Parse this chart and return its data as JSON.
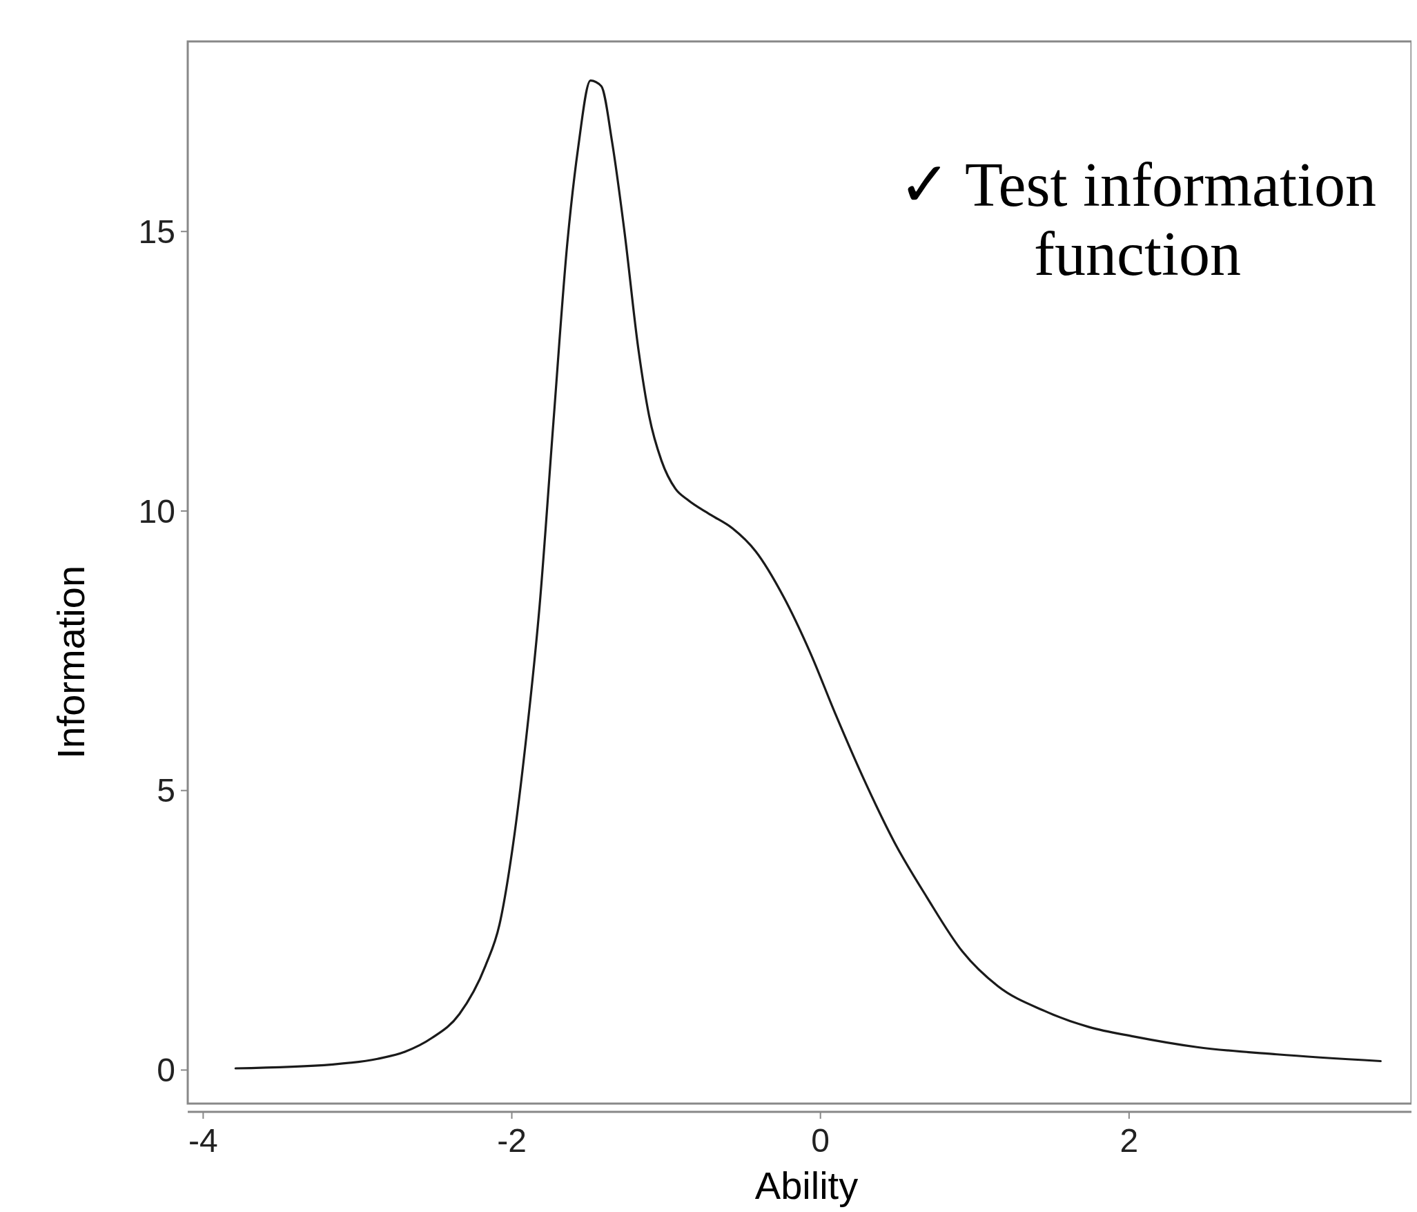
{
  "chart_data": {
    "type": "line",
    "xlabel": "Ability",
    "ylabel": "Information",
    "annotations": [
      "✓ Test information function"
    ],
    "x": [
      -3.79,
      -3.16,
      -2.87,
      -2.69,
      -2.52,
      -2.34,
      -2.17,
      -2.08,
      -1.99,
      -1.91,
      -1.82,
      -1.73,
      -1.64,
      -1.57,
      -1.49,
      -1.42,
      -1.35,
      -1.27,
      -1.18,
      -1.11,
      -1.03,
      -0.94,
      -0.86,
      -0.71,
      -0.57,
      -0.42,
      -0.24,
      -0.07,
      0.1,
      0.28,
      0.48,
      0.69,
      0.92,
      1.15,
      1.45,
      1.74,
      2.03,
      2.44,
      2.96,
      3.63
    ],
    "series": [
      {
        "color": "#1a1a1a",
        "values": [
          0.03,
          0.1,
          0.2,
          0.33,
          0.57,
          1.0,
          1.87,
          2.6,
          4.07,
          5.86,
          8.3,
          11.6,
          14.8,
          16.5,
          17.7,
          17.6,
          16.6,
          15.0,
          12.9,
          11.7,
          10.9,
          10.4,
          10.2,
          9.93,
          9.69,
          9.28,
          8.47,
          7.49,
          6.35,
          5.21,
          4.07,
          3.09,
          2.12,
          1.5,
          1.06,
          0.77,
          0.6,
          0.41,
          0.28,
          0.16
        ]
      }
    ],
    "xlim": [
      -4.1,
      3.83
    ],
    "ylim": [
      -0.6,
      18.4
    ],
    "xticks": [
      -4,
      -2,
      0,
      2
    ],
    "yticks": [
      0,
      5,
      10,
      15
    ],
    "grid": false,
    "marker": "none",
    "line_style": "solid"
  }
}
